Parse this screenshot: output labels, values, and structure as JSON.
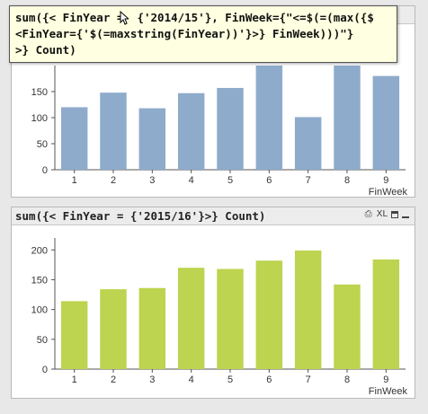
{
  "panels": [
    {
      "caption": "",
      "chart_data": {
        "type": "bar",
        "categories": [
          "1",
          "2",
          "3",
          "4",
          "5",
          "6",
          "7",
          "8",
          "9"
        ],
        "values": [
          120,
          148,
          118,
          147,
          157,
          200,
          101,
          200,
          180
        ],
        "xlabel": "FinWeek",
        "ylabel": "",
        "ylim": [
          0,
          200
        ],
        "yticks": [
          0,
          50,
          100,
          150
        ],
        "grid": false
      }
    },
    {
      "caption": "sum({< FinYear = {'2015/16'}>} Count)",
      "chart_data": {
        "type": "bar",
        "categories": [
          "1",
          "2",
          "3",
          "4",
          "5",
          "6",
          "7",
          "8",
          "9"
        ],
        "values": [
          114,
          134,
          136,
          170,
          168,
          182,
          199,
          142,
          184
        ],
        "xlabel": "FinWeek",
        "ylabel": "",
        "ylim": [
          0,
          220
        ],
        "yticks": [
          0,
          50,
          100,
          150,
          200
        ],
        "grid": false
      }
    }
  ],
  "caption_icons": {
    "print": "print-icon",
    "xl": "XL",
    "restore": "restore-icon",
    "minimize": "minimize-icon"
  },
  "tooltip": {
    "text": "sum({< FinYear =  {'2014/15'}, FinWeek={\"<=$(=(max({$\n<FinYear={'$(=maxstring(FinYear))'}>} FinWeek)))\"}\n>} Count)"
  },
  "colors": {
    "bar1": "#8eabcb",
    "bar2": "#bcd44f",
    "axis": "#555555"
  }
}
